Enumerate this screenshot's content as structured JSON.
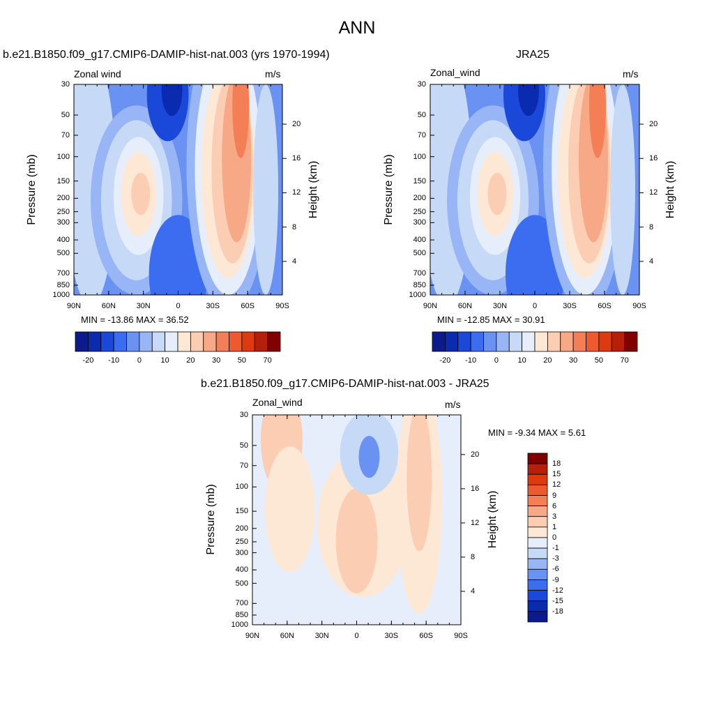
{
  "title": "ANN",
  "panels": [
    {
      "id": "model",
      "title": "b.e21.B1850.f09_g17.CMIP6-DAMIP-hist-nat.003 (yrs 1970-1994)",
      "left_label": "Zonal wind",
      "right_label": "m/s",
      "minmax": "MIN = -13.86  MAX =  36.52"
    },
    {
      "id": "obs",
      "title": "JRA25",
      "left_label": "Zonal_wind",
      "right_label": "m/s",
      "minmax": "MIN = -12.85  MAX =  30.91"
    },
    {
      "id": "diff",
      "title": "b.e21.B1850.f09_g17.CMIP6-DAMIP-hist-nat.003 - JRA25",
      "left_label": "Zonal_wind",
      "right_label": "m/s",
      "minmax": "MIN =  -9.34  MAX =   5.61"
    }
  ],
  "chart_data": [
    {
      "type": "heatmap",
      "title": "b.e21.B1850.f09_g17.CMIP6-DAMIP-hist-nat.003 (yrs 1970-1994)",
      "variable": "Zonal wind",
      "units": "m/s",
      "xlabel": "",
      "ylabel": "Pressure (mb)",
      "ylabel_right": "Height (km)",
      "x_ticks": [
        "90N",
        "60N",
        "30N",
        "0",
        "30S",
        "60S",
        "90S"
      ],
      "y_ticks": [
        "30",
        "50",
        "70",
        "100",
        "150",
        "200",
        "250",
        "300",
        "400",
        "500",
        "700",
        "850",
        "1000"
      ],
      "y_ticks_right": [
        "20",
        "16",
        "12",
        "8",
        "4"
      ],
      "min": -13.86,
      "max": 36.52,
      "colorbar_labels": [
        "-20",
        "-10",
        "0",
        "10",
        "20",
        "30",
        "50",
        "70"
      ]
    },
    {
      "type": "heatmap",
      "title": "JRA25",
      "variable": "Zonal_wind",
      "units": "m/s",
      "xlabel": "",
      "ylabel": "Pressure (mb)",
      "ylabel_right": "Height (km)",
      "x_ticks": [
        "90N",
        "60N",
        "30N",
        "0",
        "30S",
        "60S",
        "90S"
      ],
      "y_ticks": [
        "30",
        "50",
        "70",
        "100",
        "150",
        "200",
        "250",
        "300",
        "400",
        "500",
        "700",
        "850",
        "1000"
      ],
      "y_ticks_right": [
        "20",
        "16",
        "12",
        "8",
        "4"
      ],
      "min": -12.85,
      "max": 30.91,
      "colorbar_labels": [
        "-20",
        "-10",
        "0",
        "10",
        "20",
        "30",
        "50",
        "70"
      ]
    },
    {
      "type": "heatmap",
      "title": "b.e21.B1850.f09_g17.CMIP6-DAMIP-hist-nat.003 - JRA25",
      "variable": "Zonal_wind",
      "units": "m/s",
      "xlabel": "",
      "ylabel": "Pressure (mb)",
      "ylabel_right": "Height (km)",
      "x_ticks": [
        "90N",
        "60N",
        "30N",
        "0",
        "30S",
        "60S",
        "90S"
      ],
      "y_ticks": [
        "30",
        "50",
        "70",
        "100",
        "150",
        "200",
        "250",
        "300",
        "400",
        "500",
        "700",
        "850",
        "1000"
      ],
      "y_ticks_right": [
        "20",
        "16",
        "12",
        "8",
        "4"
      ],
      "min": -9.34,
      "max": 5.61,
      "colorbar_labels": [
        "18",
        "15",
        "12",
        "9",
        "6",
        "3",
        "1",
        "0",
        "-1",
        "-3",
        "-6",
        "-9",
        "-12",
        "-15",
        "-18"
      ]
    }
  ],
  "colors": {
    "c0": "#0c1a8c",
    "c1": "#0a2ab0",
    "c2": "#1a48d8",
    "c3": "#3c6cf0",
    "c4": "#6a92f2",
    "c5": "#98b6f6",
    "c6": "#c6daf8",
    "c7": "#e6eefc",
    "w1": "#fde8d6",
    "w2": "#fbcdb2",
    "w3": "#f7a887",
    "w4": "#f47f57",
    "w5": "#ee5a2e",
    "w6": "#de3a12",
    "w7": "#b5200a",
    "w8": "#800000"
  }
}
